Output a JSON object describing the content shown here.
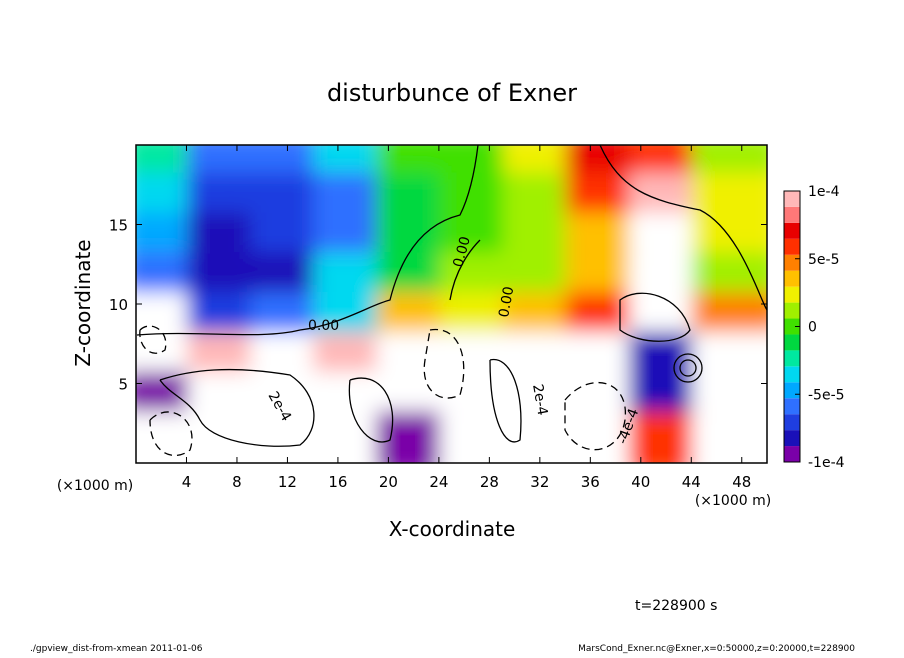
{
  "chart_data": {
    "type": "contour",
    "title": "disturbunce of Exner",
    "x_label": "X-coordinate",
    "y_label": "Z-coordinate",
    "x_unit": "(×1000 m)",
    "time_label": "t=228900 s",
    "footer_left": "./gpview_dist-from-xmean  2011-01-06",
    "footer_right": "MarsCond_Exner.nc@Exner,x=0:50000,z=0:20000,t=228900",
    "xlim": [
      0,
      50
    ],
    "ylim": [
      0,
      20
    ],
    "xticks": [
      4,
      8,
      12,
      16,
      20,
      24,
      28,
      32,
      36,
      40,
      44,
      48
    ],
    "yticks": [
      5,
      10,
      15
    ],
    "x": [
      2.5,
      7.5,
      12.5,
      17.5,
      22.5,
      27.5,
      32.5,
      37.5,
      42.5,
      47.5
    ],
    "y": [
      18.75,
      16.25,
      13.75,
      11.25,
      8.75,
      6.25,
      3.75,
      1.25
    ],
    "z": [
      [
        -2e-05,
        -6e-05,
        -6e-05,
        -4e-05,
        0,
        0,
        2e-05,
        7e-05,
        6e-05,
        1e-05
      ],
      [
        -4e-05,
        -7e-05,
        -7e-05,
        -6e-05,
        -1e-05,
        0,
        1e-05,
        6e-05,
        0.0001,
        2e-05
      ],
      [
        -5e-05,
        -8e-05,
        -7e-05,
        -6e-05,
        -1e-05,
        0,
        1e-05,
        4e-05,
        0.00012,
        2e-05
      ],
      [
        -6e-05,
        -8e-05,
        -8e-05,
        -4e-05,
        -1e-05,
        1e-05,
        1e-05,
        3e-05,
        0.00012,
        1e-05
      ],
      [
        0.00012,
        -7e-05,
        -6e-05,
        -3e-05,
        4e-05,
        2e-05,
        3e-05,
        6e-05,
        0.00012,
        5e-05
      ],
      [
        0.00012,
        0.0001,
        0.00012,
        0.0001,
        0.00012,
        0.00012,
        0.00012,
        0.00012,
        -8e-05,
        0.00012
      ],
      [
        -9e-05,
        0.00012,
        0.00012,
        0.00012,
        0.00012,
        0.00012,
        0.00012,
        0.00012,
        -8e-05,
        0.00012
      ],
      [
        0.00012,
        0.00012,
        0.00012,
        0.00012,
        -9e-05,
        0.00012,
        0.00012,
        0.00012,
        6e-05,
        0.00012
      ]
    ],
    "colorbar_lim": [
      -0.0001,
      0.0001
    ],
    "colorbar_ticks": [
      {
        "value": 0.0001,
        "label": "1e-4"
      },
      {
        "value": 5e-05,
        "label": "5e-5"
      },
      0,
      {
        "value": -5e-05,
        "label": "-5e-5"
      },
      {
        "value": -0.0001,
        "label": "-1e-4"
      }
    ],
    "colormap": [
      "#7a00a8",
      "#1a10b8",
      "#1f3ee0",
      "#2f70ff",
      "#00a8ff",
      "#00d8f0",
      "#00e8a0",
      "#00d840",
      "#40e000",
      "#a0f000",
      "#f0f000",
      "#ffc000",
      "#ff8000",
      "#ff3000",
      "#e80000",
      "#ff7878",
      "#ffb8b8"
    ],
    "over_color": "#ffffff",
    "contour_labels": [
      "0.00",
      "0.00",
      "0.00",
      "2e-4",
      "2e-4",
      "-4e-4"
    ]
  }
}
